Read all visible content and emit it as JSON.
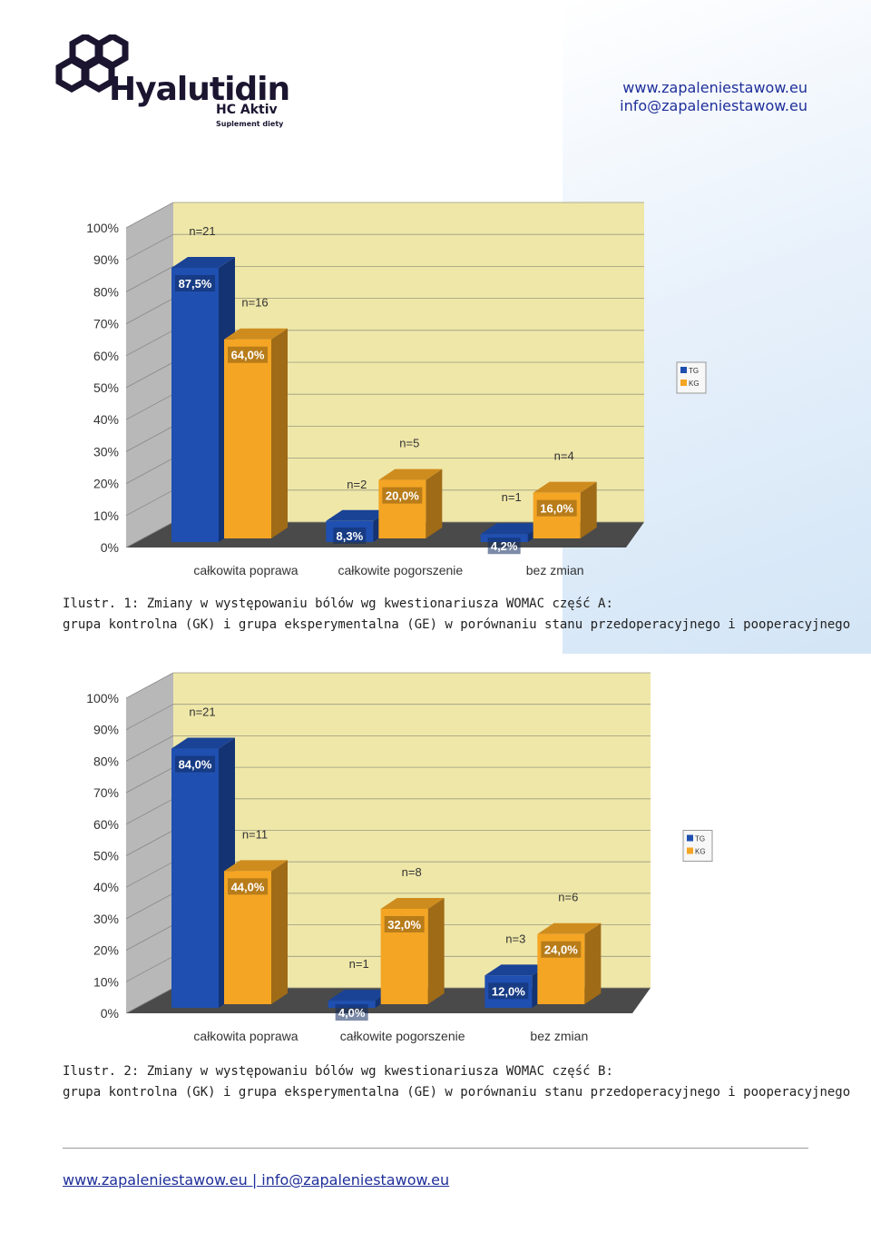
{
  "header": {
    "brand": "Hyalutidin",
    "brand_sub": "HC Aktiv",
    "brand_tag": "Suplement diety",
    "website": "www.zapaleniestawow.eu",
    "email": "info@zapaleniestawow.eu"
  },
  "captions": [
    {
      "line1": "Ilustr. 1: Zmiany w występowaniu bólów wg kwestionariusza WOMAC część A:",
      "line2": "grupa kontrolna (GK) i grupa eksperymentalna (GE) w porównaniu stanu przedoperacyjnego i pooperacyjnego"
    },
    {
      "line1": "Ilustr. 2: Zmiany w występowaniu bólów wg kwestionariusza WOMAC część B:",
      "line2": "grupa kontrolna (GK) i grupa eksperymentalna (GE) w porównaniu stanu przedoperacyjnego i pooperacyjnego"
    }
  ],
  "footer": {
    "text": "www.zapaleniestawow.eu | info@zapaleniestawow.eu"
  },
  "chart_data": [
    {
      "type": "bar",
      "categories": [
        "całkowita poprawa",
        "całkowite pogorszenie",
        "bez zmian"
      ],
      "ylim": [
        0,
        100
      ],
      "yticks": [
        "0%",
        "10%",
        "20%",
        "30%",
        "40%",
        "50%",
        "60%",
        "70%",
        "80%",
        "90%",
        "100%"
      ],
      "legend_position": "right",
      "series": [
        {
          "name": "TG",
          "color": "#1f4fb0",
          "values": [
            87.5,
            8.3,
            4.2
          ],
          "labels": [
            "87,5%",
            "8,3%",
            "4,2%"
          ],
          "n": [
            "n=21",
            "n=2",
            "n=1"
          ]
        },
        {
          "name": "KG",
          "color": "#f4a523",
          "values": [
            64.0,
            20.0,
            16.0
          ],
          "labels": [
            "64,0%",
            "20,0%",
            "16,0%"
          ],
          "n": [
            "n=16",
            "n=5",
            "n=4"
          ]
        }
      ]
    },
    {
      "type": "bar",
      "categories": [
        "całkowita poprawa",
        "całkowite pogorszenie",
        "bez zmian"
      ],
      "ylim": [
        0,
        100
      ],
      "yticks": [
        "0%",
        "10%",
        "20%",
        "30%",
        "40%",
        "50%",
        "60%",
        "70%",
        "80%",
        "90%",
        "100%"
      ],
      "legend_position": "right",
      "series": [
        {
          "name": "TG",
          "color": "#1f4fb0",
          "values": [
            84.0,
            4.0,
            12.0
          ],
          "labels": [
            "84,0%",
            "4,0%",
            "12,0%"
          ],
          "n": [
            "n=21",
            "n=1",
            "n=3"
          ]
        },
        {
          "name": "KG",
          "color": "#f4a523",
          "values": [
            44.0,
            32.0,
            24.0
          ],
          "labels": [
            "44,0%",
            "32,0%",
            "24,0%"
          ],
          "n": [
            "n=11",
            "n=8",
            "n=6"
          ]
        }
      ]
    }
  ]
}
